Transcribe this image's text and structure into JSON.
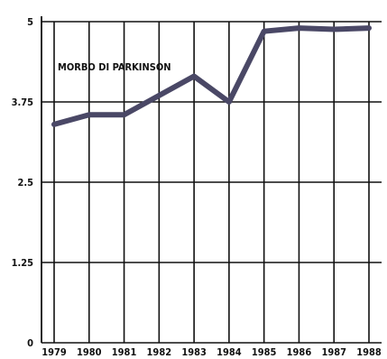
{
  "chart_data": {
    "type": "line",
    "title": "",
    "xlabel": "",
    "ylabel": "",
    "annotation": "MORBO DI PARKINSON",
    "x": [
      "1979",
      "1980",
      "1981",
      "1982",
      "1983",
      "1984",
      "1985",
      "1986",
      "1987",
      "1988"
    ],
    "series": [
      {
        "values": [
          3.4,
          3.55,
          3.55,
          3.85,
          4.15,
          3.75,
          4.85,
          4.9,
          4.88,
          4.9
        ]
      }
    ],
    "ylim": [
      0,
      5
    ],
    "yticks": [
      "0",
      "1.25",
      "2.5",
      "3.75",
      "5"
    ],
    "grid": true,
    "legend": "none",
    "line_color": "#4a4866"
  }
}
